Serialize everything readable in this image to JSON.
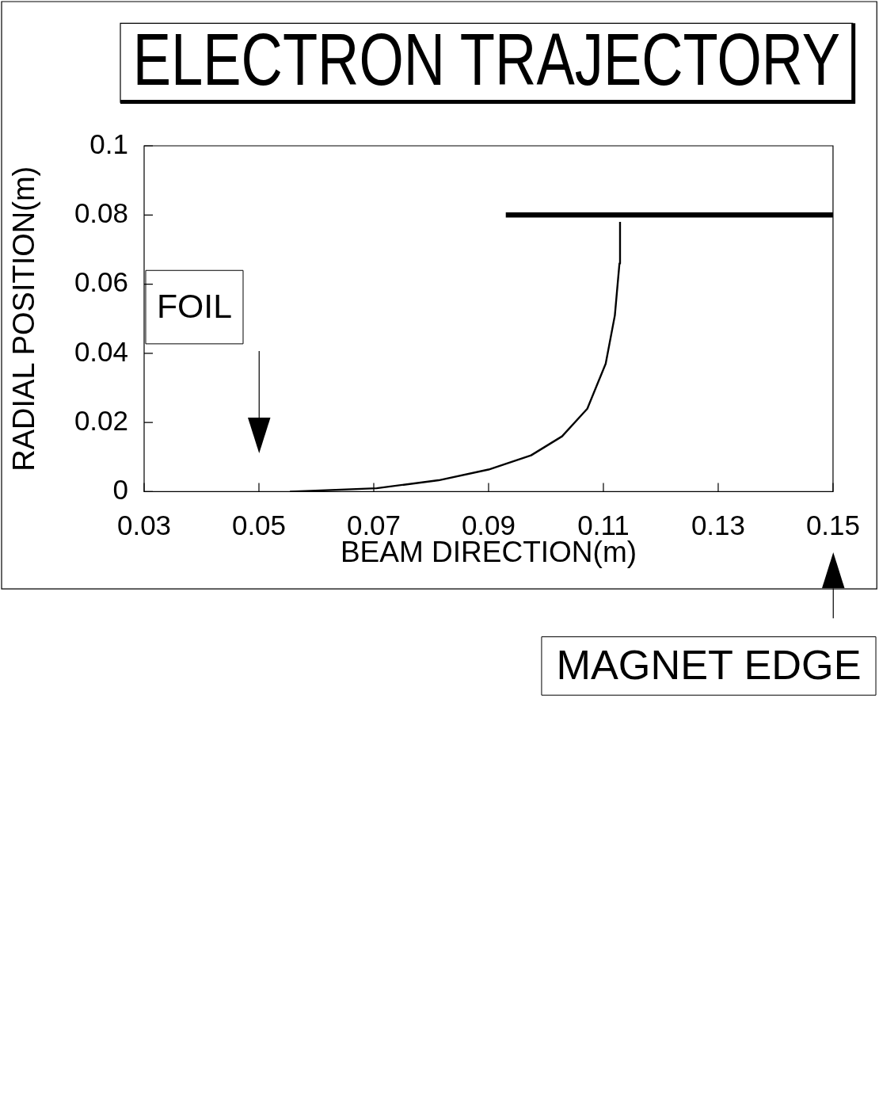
{
  "chart_data": {
    "type": "line",
    "title": "ELECTRON TRAJECTORY",
    "xlabel": "BEAM DIRECTION(m)",
    "ylabel": "RADIAL POSITION(m)",
    "xlim": [
      0.03,
      0.15
    ],
    "xticks": [
      0.03,
      0.05,
      0.07,
      0.09,
      0.11,
      0.13,
      0.15
    ],
    "ylim": [
      0,
      0.1
    ],
    "yticks": [
      0,
      0.02,
      0.04,
      0.06,
      0.08,
      0.1
    ],
    "grid": false,
    "legend": false,
    "marker": "none",
    "line_style": "solid",
    "series": [
      {
        "type": "line",
        "color": "#000000",
        "x": [
          0.0554,
          0.0705,
          0.0813,
          0.09,
          0.0974,
          0.1028,
          0.1072,
          0.1104,
          0.112,
          0.1128,
          0.1129
        ],
        "values": [
          0,
          0.001,
          0.0033,
          0.0064,
          0.0105,
          0.016,
          0.024,
          0.037,
          0.051,
          0.066,
          0.078
        ]
      },
      {
        "type": "line",
        "color": "#000000",
        "x": [
          0.093,
          0.15
        ],
        "values": [
          0.08,
          0.08
        ]
      }
    ],
    "annotations": [
      "FOIL",
      "MAGNET EDGE"
    ]
  }
}
